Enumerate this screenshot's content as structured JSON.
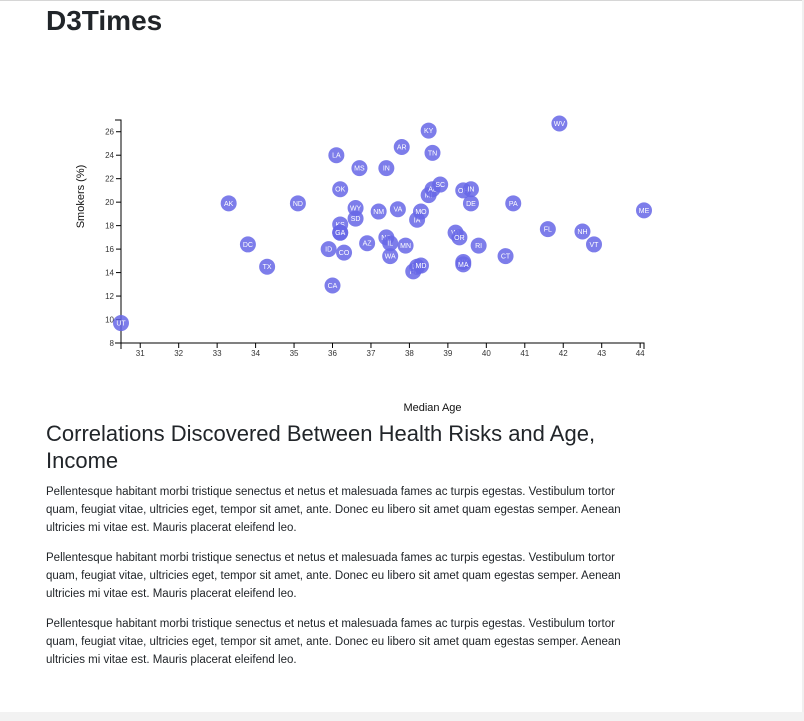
{
  "page": {
    "title": "D3Times"
  },
  "article": {
    "heading": "Correlations Discovered Between Health Risks and Age, Income",
    "paragraphs": [
      "Pellentesque habitant morbi tristique senectus et netus et malesuada fames ac turpis egestas. Vestibulum tortor quam, feugiat vitae, ultricies eget, tempor sit amet, ante. Donec eu libero sit amet quam egestas semper. Aenean ultricies mi vitae est. Mauris placerat eleifend leo.",
      "Pellentesque habitant morbi tristique senectus et netus et malesuada fames ac turpis egestas. Vestibulum tortor quam, feugiat vitae, ultricies eget, tempor sit amet, ante. Donec eu libero sit amet quam egestas semper. Aenean ultricies mi vitae est. Mauris placerat eleifend leo.",
      "Pellentesque habitant morbi tristique senectus et netus et malesuada fames ac turpis egestas. Vestibulum tortor quam, feugiat vitae, ultricies eget, tempor sit amet, ante. Donec eu libero sit amet quam egestas semper. Aenean ultricies mi vitae est. Mauris placerat eleifend leo."
    ]
  },
  "colors": {
    "marker": "#6666e6",
    "marker_text": "#ffffff",
    "axis": "#000000"
  },
  "chart_data": {
    "type": "scatter",
    "xlabel": "Median Age",
    "ylabel": "Smokers (%)",
    "xlim": [
      30.5,
      44.1
    ],
    "ylim": [
      8,
      27
    ],
    "xticks": [
      31,
      32,
      33,
      34,
      35,
      36,
      37,
      38,
      39,
      40,
      41,
      42,
      43,
      44
    ],
    "yticks": [
      8,
      10,
      12,
      14,
      16,
      18,
      20,
      22,
      24,
      26
    ],
    "grid": false,
    "points": [
      {
        "label": "UT",
        "x": 30.5,
        "y": 9.7
      },
      {
        "label": "AK",
        "x": 33.3,
        "y": 19.9
      },
      {
        "label": "DC",
        "x": 33.8,
        "y": 16.4
      },
      {
        "label": "TX",
        "x": 34.3,
        "y": 14.5
      },
      {
        "label": "ND",
        "x": 35.1,
        "y": 19.9
      },
      {
        "label": "ID",
        "x": 35.9,
        "y": 16.0
      },
      {
        "label": "CA",
        "x": 36.0,
        "y": 12.9
      },
      {
        "label": "LA",
        "x": 36.1,
        "y": 24.0
      },
      {
        "label": "OK",
        "x": 36.2,
        "y": 21.1
      },
      {
        "label": "KS",
        "x": 36.2,
        "y": 18.1
      },
      {
        "label": "NE",
        "x": 36.2,
        "y": 17.4
      },
      {
        "label": "GA",
        "x": 36.2,
        "y": 17.4
      },
      {
        "label": "CO",
        "x": 36.3,
        "y": 15.7
      },
      {
        "label": "WY",
        "x": 36.6,
        "y": 19.5
      },
      {
        "label": "SD",
        "x": 36.6,
        "y": 18.6
      },
      {
        "label": "MS",
        "x": 36.7,
        "y": 22.9
      },
      {
        "label": "AZ",
        "x": 36.9,
        "y": 16.5
      },
      {
        "label": "NM",
        "x": 37.2,
        "y": 19.2
      },
      {
        "label": "IN",
        "x": 37.4,
        "y": 22.9
      },
      {
        "label": "NC",
        "x": 37.4,
        "y": 17.0
      },
      {
        "label": "WA",
        "x": 37.5,
        "y": 15.4
      },
      {
        "label": "IL",
        "x": 37.5,
        "y": 16.5
      },
      {
        "label": "VA",
        "x": 37.7,
        "y": 19.4
      },
      {
        "label": "AR",
        "x": 37.8,
        "y": 24.7
      },
      {
        "label": "MN",
        "x": 37.9,
        "y": 16.3
      },
      {
        "label": "HI",
        "x": 38.1,
        "y": 14.1
      },
      {
        "label": "IA",
        "x": 38.2,
        "y": 18.5
      },
      {
        "label": "NV",
        "x": 38.2,
        "y": 14.5
      },
      {
        "label": "MD",
        "x": 38.3,
        "y": 14.6
      },
      {
        "label": "MO",
        "x": 38.3,
        "y": 19.2
      },
      {
        "label": "KY",
        "x": 38.5,
        "y": 26.1
      },
      {
        "label": "MI",
        "x": 38.5,
        "y": 20.6
      },
      {
        "label": "TN",
        "x": 38.6,
        "y": 24.2
      },
      {
        "label": "AL",
        "x": 38.6,
        "y": 21.1
      },
      {
        "label": "SC",
        "x": 38.8,
        "y": 21.5
      },
      {
        "label": "WI",
        "x": 39.2,
        "y": 17.4
      },
      {
        "label": "OR",
        "x": 39.3,
        "y": 17.0
      },
      {
        "label": "NY",
        "x": 39.4,
        "y": 14.9
      },
      {
        "label": "MA",
        "x": 39.4,
        "y": 14.7
      },
      {
        "label": "OH",
        "x": 39.4,
        "y": 21.0
      },
      {
        "label": "IN",
        "x": 39.6,
        "y": 21.1
      },
      {
        "label": "DE",
        "x": 39.6,
        "y": 19.9
      },
      {
        "label": "RI",
        "x": 39.8,
        "y": 16.3
      },
      {
        "label": "CT",
        "x": 40.5,
        "y": 15.4
      },
      {
        "label": "PA",
        "x": 40.7,
        "y": 19.9
      },
      {
        "label": "FL",
        "x": 41.6,
        "y": 17.7
      },
      {
        "label": "WV",
        "x": 41.9,
        "y": 26.7
      },
      {
        "label": "NH",
        "x": 42.5,
        "y": 17.5
      },
      {
        "label": "VT",
        "x": 42.8,
        "y": 16.4
      },
      {
        "label": "ME",
        "x": 44.1,
        "y": 19.3
      }
    ]
  }
}
